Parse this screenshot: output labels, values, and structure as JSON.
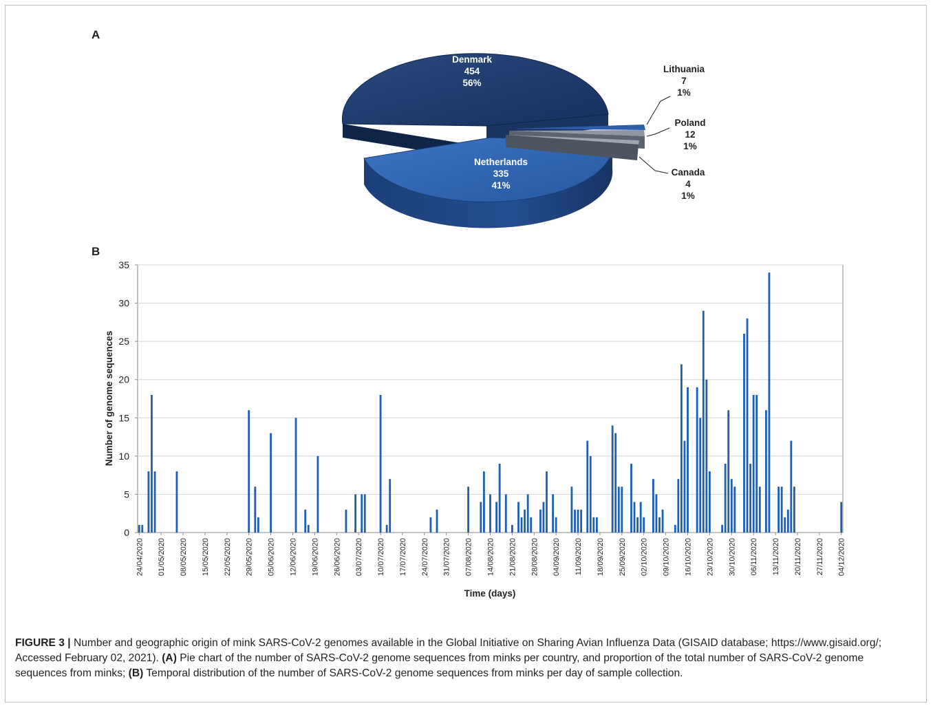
{
  "figure": {
    "panel_a_label": "A",
    "panel_b_label": "B"
  },
  "colors": {
    "dark_navy": "#1d3b6d",
    "mid_blue": "#2f62b1",
    "steel_gray": "#616b78",
    "bar_blue": "#1f5fb0"
  },
  "chart_data": [
    {
      "type": "pie",
      "style": "3d-exploded",
      "slices": [
        {
          "label": "Denmark",
          "value": 454,
          "percent": "56%"
        },
        {
          "label": "Netherlands",
          "value": 335,
          "percent": "41%"
        },
        {
          "label": "Lithuania",
          "value": 7,
          "percent": "1%"
        },
        {
          "label": "Poland",
          "value": 12,
          "percent": "1%"
        },
        {
          "label": "Canada",
          "value": 4,
          "percent": "1%"
        }
      ]
    },
    {
      "type": "bar",
      "xlabel": "Time (days)",
      "ylabel": "Number of genome sequences",
      "ylim": [
        0,
        35
      ],
      "yticks": [
        0,
        5,
        10,
        15,
        20,
        25,
        30,
        35
      ],
      "x_start": "24/04/2020",
      "x_end": "04/12/2020",
      "xtick_labels": [
        "24/04/2020",
        "01/05/2020",
        "08/05/2020",
        "15/05/2020",
        "22/05/2020",
        "29/05/2020",
        "05/06/2020",
        "12/06/2020",
        "19/06/2020",
        "26/06/2020",
        "03/07/2020",
        "10/07/2020",
        "17/07/2020",
        "24/07/2020",
        "31/07/2020",
        "07/08/2020",
        "14/08/2020",
        "21/08/2020",
        "28/08/2020",
        "04/09/2020",
        "11/09/2020",
        "18/09/2020",
        "25/09/2020",
        "02/10/2020",
        "09/10/2020",
        "16/10/2020",
        "23/10/2020",
        "30/10/2020",
        "06/11/2020",
        "13/11/2020",
        "20/11/2020",
        "27/11/2020",
        "04/12/2020"
      ],
      "bars": [
        {
          "date": "24/04/2020",
          "value": 1
        },
        {
          "date": "25/04/2020",
          "value": 1
        },
        {
          "date": "27/04/2020",
          "value": 8
        },
        {
          "date": "28/04/2020",
          "value": 18
        },
        {
          "date": "29/04/2020",
          "value": 8
        },
        {
          "date": "06/05/2020",
          "value": 8
        },
        {
          "date": "29/05/2020",
          "value": 16
        },
        {
          "date": "31/05/2020",
          "value": 6
        },
        {
          "date": "01/06/2020",
          "value": 2
        },
        {
          "date": "05/06/2020",
          "value": 13
        },
        {
          "date": "13/06/2020",
          "value": 15
        },
        {
          "date": "16/06/2020",
          "value": 3
        },
        {
          "date": "17/06/2020",
          "value": 1
        },
        {
          "date": "20/06/2020",
          "value": 10
        },
        {
          "date": "29/06/2020",
          "value": 3
        },
        {
          "date": "02/07/2020",
          "value": 5
        },
        {
          "date": "04/07/2020",
          "value": 5
        },
        {
          "date": "05/07/2020",
          "value": 5
        },
        {
          "date": "10/07/2020",
          "value": 18
        },
        {
          "date": "12/07/2020",
          "value": 1
        },
        {
          "date": "13/07/2020",
          "value": 7
        },
        {
          "date": "26/07/2020",
          "value": 2
        },
        {
          "date": "28/07/2020",
          "value": 3
        },
        {
          "date": "07/08/2020",
          "value": 6
        },
        {
          "date": "11/08/2020",
          "value": 4
        },
        {
          "date": "12/08/2020",
          "value": 8
        },
        {
          "date": "14/08/2020",
          "value": 5
        },
        {
          "date": "16/08/2020",
          "value": 4
        },
        {
          "date": "17/08/2020",
          "value": 9
        },
        {
          "date": "19/08/2020",
          "value": 5
        },
        {
          "date": "21/08/2020",
          "value": 1
        },
        {
          "date": "23/08/2020",
          "value": 4
        },
        {
          "date": "24/08/2020",
          "value": 2
        },
        {
          "date": "25/08/2020",
          "value": 3
        },
        {
          "date": "26/08/2020",
          "value": 5
        },
        {
          "date": "27/08/2020",
          "value": 2
        },
        {
          "date": "30/08/2020",
          "value": 3
        },
        {
          "date": "31/08/2020",
          "value": 4
        },
        {
          "date": "01/09/2020",
          "value": 8
        },
        {
          "date": "03/09/2020",
          "value": 5
        },
        {
          "date": "04/09/2020",
          "value": 2
        },
        {
          "date": "09/09/2020",
          "value": 6
        },
        {
          "date": "10/09/2020",
          "value": 3
        },
        {
          "date": "11/09/2020",
          "value": 3
        },
        {
          "date": "12/09/2020",
          "value": 3
        },
        {
          "date": "14/09/2020",
          "value": 12
        },
        {
          "date": "15/09/2020",
          "value": 10
        },
        {
          "date": "16/09/2020",
          "value": 2
        },
        {
          "date": "17/09/2020",
          "value": 2
        },
        {
          "date": "22/09/2020",
          "value": 14
        },
        {
          "date": "23/09/2020",
          "value": 13
        },
        {
          "date": "24/09/2020",
          "value": 6
        },
        {
          "date": "25/09/2020",
          "value": 6
        },
        {
          "date": "28/09/2020",
          "value": 9
        },
        {
          "date": "29/09/2020",
          "value": 4
        },
        {
          "date": "30/09/2020",
          "value": 2
        },
        {
          "date": "01/10/2020",
          "value": 4
        },
        {
          "date": "02/10/2020",
          "value": 2
        },
        {
          "date": "05/10/2020",
          "value": 7
        },
        {
          "date": "06/10/2020",
          "value": 5
        },
        {
          "date": "07/10/2020",
          "value": 2
        },
        {
          "date": "08/10/2020",
          "value": 3
        },
        {
          "date": "12/10/2020",
          "value": 1
        },
        {
          "date": "13/10/2020",
          "value": 7
        },
        {
          "date": "14/10/2020",
          "value": 22
        },
        {
          "date": "15/10/2020",
          "value": 12
        },
        {
          "date": "16/10/2020",
          "value": 19
        },
        {
          "date": "19/10/2020",
          "value": 19
        },
        {
          "date": "20/10/2020",
          "value": 15
        },
        {
          "date": "21/10/2020",
          "value": 29
        },
        {
          "date": "22/10/2020",
          "value": 20
        },
        {
          "date": "23/10/2020",
          "value": 8
        },
        {
          "date": "27/10/2020",
          "value": 1
        },
        {
          "date": "28/10/2020",
          "value": 9
        },
        {
          "date": "29/10/2020",
          "value": 16
        },
        {
          "date": "30/10/2020",
          "value": 7
        },
        {
          "date": "31/10/2020",
          "value": 6
        },
        {
          "date": "03/11/2020",
          "value": 26
        },
        {
          "date": "04/11/2020",
          "value": 28
        },
        {
          "date": "05/11/2020",
          "value": 9
        },
        {
          "date": "06/11/2020",
          "value": 18
        },
        {
          "date": "07/11/2020",
          "value": 18
        },
        {
          "date": "08/11/2020",
          "value": 6
        },
        {
          "date": "10/11/2020",
          "value": 16
        },
        {
          "date": "11/11/2020",
          "value": 34
        },
        {
          "date": "14/11/2020",
          "value": 6
        },
        {
          "date": "15/11/2020",
          "value": 6
        },
        {
          "date": "16/11/2020",
          "value": 2
        },
        {
          "date": "17/11/2020",
          "value": 3
        },
        {
          "date": "18/11/2020",
          "value": 12
        },
        {
          "date": "19/11/2020",
          "value": 6
        },
        {
          "date": "04/12/2020",
          "value": 4
        }
      ]
    }
  ],
  "caption": {
    "figure_label": "FIGURE 3 |",
    "text_1": "Number and geographic origin of mink SARS-CoV-2 genomes available in the Global Initiative on Sharing Avian Influenza Data (GISAID database; https://www.gisaid.org/; Accessed February 02, 2021). ",
    "label_a": "(A)",
    "text_2": " Pie chart of the number of SARS-CoV-2 genome sequences from minks per country, and proportion of the total number of SARS-CoV-2 genome sequences from minks; ",
    "label_b": "(B)",
    "text_3": " Temporal distribution of the number of SARS-CoV-2 genome sequences from minks per day of sample collection."
  }
}
